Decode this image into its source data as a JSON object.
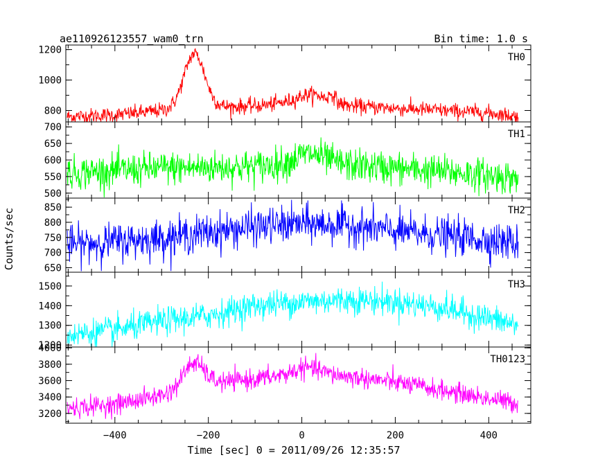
{
  "header": {
    "left": "ae110926123557_wam0_trn",
    "right": "Bin time: 1.0 s"
  },
  "xlabel": "Time [sec] 0 = 2011/09/26 12:35:57",
  "ylabel": "Counts/sec",
  "chart_data": {
    "type": "line",
    "xlim": [
      -505,
      490
    ],
    "x_data_range": [
      -502,
      463
    ],
    "x_ticks": [
      -400,
      -200,
      0,
      200,
      400
    ],
    "x_tick_labels": [
      "−400",
      "−200",
      "0",
      "200",
      "400"
    ],
    "panels": [
      {
        "name": "TH0",
        "color": "#ff0000",
        "ylim": [
          725,
          1230
        ],
        "y_ticks": [
          800,
          1000,
          1200
        ],
        "y_tick_labels": [
          "800",
          "1000",
          "1200"
        ],
        "baseline": [
          [
            -502,
            760
          ],
          [
            -400,
            770
          ],
          [
            -300,
            800
          ],
          [
            -200,
            820
          ],
          [
            -100,
            830
          ],
          [
            0,
            860
          ],
          [
            80,
            840
          ],
          [
            100,
            830
          ],
          [
            200,
            815
          ],
          [
            300,
            800
          ],
          [
            400,
            785
          ],
          [
            463,
            760
          ]
        ],
        "features": [
          {
            "center": -230,
            "width": 22,
            "height": 360
          },
          {
            "center": 25,
            "width": 30,
            "height": 50
          },
          {
            "center": 65,
            "width": 6,
            "height": 45
          }
        ],
        "noise": 25
      },
      {
        "name": "TH1",
        "color": "#00ff00",
        "ylim": [
          485,
          715
        ],
        "y_ticks": [
          500,
          550,
          600,
          650,
          700
        ],
        "y_tick_labels": [
          "500",
          "550",
          "600",
          "650",
          "700"
        ],
        "baseline": [
          [
            -502,
            560
          ],
          [
            -300,
            575
          ],
          [
            -100,
            580
          ],
          [
            0,
            595
          ],
          [
            100,
            585
          ],
          [
            200,
            575
          ],
          [
            350,
            560
          ],
          [
            463,
            545
          ]
        ],
        "features": [
          {
            "center": 20,
            "width": 28,
            "height": 25
          }
        ],
        "noise": 25
      },
      {
        "name": "TH2",
        "color": "#0000ff",
        "ylim": [
          635,
          880
        ],
        "y_ticks": [
          650,
          700,
          750,
          800,
          850
        ],
        "y_tick_labels": [
          "650",
          "700",
          "750",
          "800",
          "850"
        ],
        "baseline": [
          [
            -502,
            725
          ],
          [
            -300,
            748
          ],
          [
            -100,
            785
          ],
          [
            0,
            795
          ],
          [
            100,
            790
          ],
          [
            200,
            770
          ],
          [
            350,
            750
          ],
          [
            463,
            730
          ]
        ],
        "features": [],
        "noise": 30
      },
      {
        "name": "TH3",
        "color": "#00ffff",
        "ylim": [
          1190,
          1570
        ],
        "y_ticks": [
          1200,
          1300,
          1400,
          1500
        ],
        "y_tick_labels": [
          "1200",
          "1300",
          "1400",
          "1500"
        ],
        "baseline": [
          [
            -502,
            1250
          ],
          [
            -400,
            1275
          ],
          [
            -300,
            1320
          ],
          [
            -200,
            1350
          ],
          [
            -100,
            1400
          ],
          [
            0,
            1420
          ],
          [
            100,
            1430
          ],
          [
            200,
            1420
          ],
          [
            300,
            1390
          ],
          [
            400,
            1335
          ],
          [
            463,
            1300
          ]
        ],
        "features": [],
        "noise": 35
      },
      {
        "name": "TH0123",
        "color": "#ff00ff",
        "ylim": [
          3080,
          4010
        ],
        "y_ticks": [
          3200,
          3400,
          3600,
          3800,
          4000
        ],
        "y_tick_labels": [
          "3200",
          "3400",
          "3600",
          "3800",
          "4000"
        ],
        "baseline": [
          [
            -502,
            3260
          ],
          [
            -400,
            3310
          ],
          [
            -300,
            3420
          ],
          [
            -200,
            3560
          ],
          [
            -100,
            3620
          ],
          [
            0,
            3690
          ],
          [
            100,
            3650
          ],
          [
            200,
            3580
          ],
          [
            300,
            3480
          ],
          [
            400,
            3380
          ],
          [
            463,
            3320
          ]
        ],
        "features": [
          {
            "center": -232,
            "width": 22,
            "height": 300
          },
          {
            "center": 15,
            "width": 28,
            "height": 70
          }
        ],
        "noise": 60
      }
    ]
  }
}
